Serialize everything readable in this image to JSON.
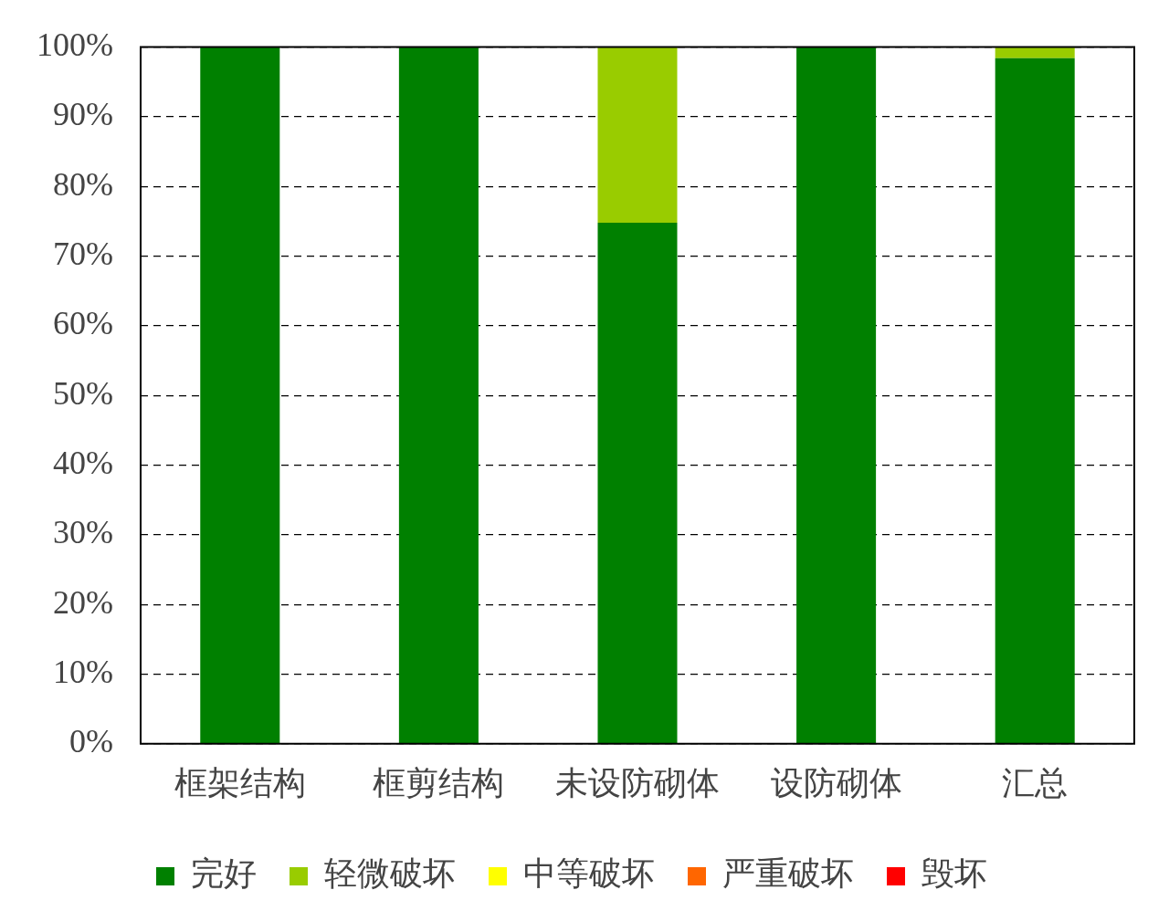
{
  "chart_data": {
    "type": "bar",
    "stacked": true,
    "categories": [
      "框架结构",
      "框剪结构",
      "未设防砌体",
      "设防砌体",
      "汇总"
    ],
    "series": [
      {
        "name": "完好",
        "color": "#008000",
        "values": [
          100,
          100,
          74.8,
          100,
          98.4
        ]
      },
      {
        "name": "轻微破坏",
        "color": "#99cc00",
        "values": [
          0,
          0,
          25.2,
          0,
          1.6
        ]
      },
      {
        "name": "中等破坏",
        "color": "#ffff00",
        "values": [
          0,
          0,
          0,
          0,
          0
        ]
      },
      {
        "name": "严重破坏",
        "color": "#ff6600",
        "values": [
          0,
          0,
          0,
          0,
          0
        ]
      },
      {
        "name": "毁坏",
        "color": "#ff0000",
        "values": [
          0,
          0,
          0,
          0,
          0
        ]
      }
    ],
    "ylim": [
      0,
      100
    ],
    "yticks": [
      {
        "value": 0,
        "label": "0%"
      },
      {
        "value": 10,
        "label": "10%"
      },
      {
        "value": 20,
        "label": "20%"
      },
      {
        "value": 30,
        "label": "30%"
      },
      {
        "value": 40,
        "label": "40%"
      },
      {
        "value": 50,
        "label": "50%"
      },
      {
        "value": 60,
        "label": "60%"
      },
      {
        "value": 70,
        "label": "70%"
      },
      {
        "value": 80,
        "label": "80%"
      },
      {
        "value": 90,
        "label": "90%"
      },
      {
        "value": 100,
        "label": "100%"
      }
    ],
    "grid": "y",
    "legend": "bottom"
  }
}
